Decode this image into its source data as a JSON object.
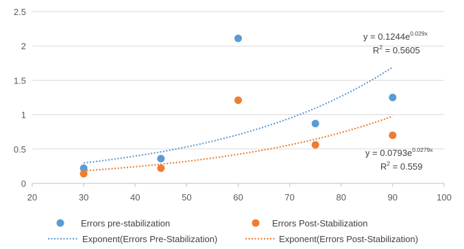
{
  "chart_data": {
    "type": "scatter",
    "xlim": [
      20,
      100
    ],
    "ylim": [
      0,
      2.5
    ],
    "x_ticks": [
      "20",
      "30",
      "40",
      "50",
      "60",
      "70",
      "80",
      "90",
      "100"
    ],
    "y_ticks": [
      "0",
      "0.5",
      "1",
      "1.5",
      "2",
      "2.5"
    ],
    "grid": "horizontal",
    "legend_position": "bottom",
    "series": [
      {
        "name": "Errors pre-stabilization",
        "color": "#5b9bd5",
        "x": [
          30,
          45,
          60,
          75,
          90
        ],
        "y": [
          0.22,
          0.36,
          2.11,
          0.87,
          1.25
        ]
      },
      {
        "name": "Errors Post-Stabilization",
        "color": "#ed7d31",
        "x": [
          30,
          45,
          60,
          75,
          90
        ],
        "y": [
          0.14,
          0.22,
          1.21,
          0.56,
          0.7
        ]
      }
    ],
    "trendlines": [
      {
        "name": "Exponent(Errors Pre-Stabilization)",
        "color": "#5b9bd5",
        "a": 0.1244,
        "b": 0.029,
        "x_range": [
          30,
          90
        ],
        "equation_main": "y = 0.1244e",
        "equation_exp": "0.029x",
        "r2_main": "R",
        "r2_sup": "2",
        "r2_value": " = 0.5605"
      },
      {
        "name": "Exponent(Errors Post-Stabilization)",
        "color": "#ed7d31",
        "a": 0.0793,
        "b": 0.0279,
        "x_range": [
          30,
          90
        ],
        "equation_main": "y = 0.0793e",
        "equation_exp": "0.0279x",
        "r2_main": "R",
        "r2_sup": "2",
        "r2_value": " = 0.559"
      }
    ]
  }
}
